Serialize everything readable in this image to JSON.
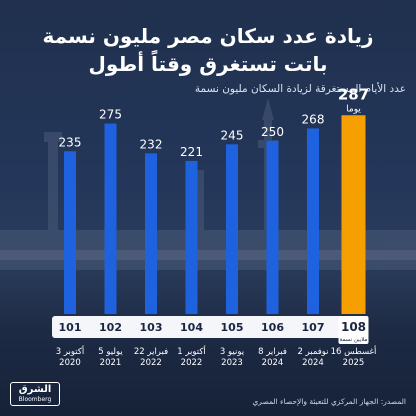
{
  "title_line1": "زيادة عدد سكان مصر مليون نسمة",
  "title_line2": "باتت تستغرق وقتاً أطول",
  "subtitle": "عدد الأيام المستغرقة لزيادة السكان مليون نسمة",
  "source": "المصدر: الجهاز المركزي للتعبئة والإحصاء المصري",
  "logo": {
    "arabic": "الشرق",
    "english": "Bloomberg"
  },
  "highlight_unit": "يوما",
  "highlight_millions_unit": "ملايين نسمة",
  "colors": {
    "bar": "#1f62e0",
    "highlight": "#f5a000",
    "label": "#ffffff",
    "pill": "#f4f6fa",
    "pill_text": "#1a2540"
  },
  "chart_data": {
    "type": "bar",
    "title": "عدد الأيام المستغرقة لزيادة السكان مليون نسمة",
    "categories": [
      {
        "million": "101",
        "date_line1": "3 أكتوبر",
        "date_line2": "2020"
      },
      {
        "million": "102",
        "date_line1": "5 يوليو",
        "date_line2": "2021"
      },
      {
        "million": "103",
        "date_line1": "22 فبراير",
        "date_line2": "2022"
      },
      {
        "million": "104",
        "date_line1": "1 أكتوبر",
        "date_line2": "2022"
      },
      {
        "million": "105",
        "date_line1": "3 يونيو",
        "date_line2": "2023"
      },
      {
        "million": "106",
        "date_line1": "8 فبراير",
        "date_line2": "2024"
      },
      {
        "million": "107",
        "date_line1": "2 نوفمبر",
        "date_line2": "2024"
      },
      {
        "million": "108",
        "date_line1": "16 أغسطس",
        "date_line2": "2025"
      }
    ],
    "values": [
      235,
      275,
      232,
      221,
      245,
      250,
      268,
      287
    ],
    "highlight_index": 7,
    "ylim": [
      0,
      300
    ]
  }
}
